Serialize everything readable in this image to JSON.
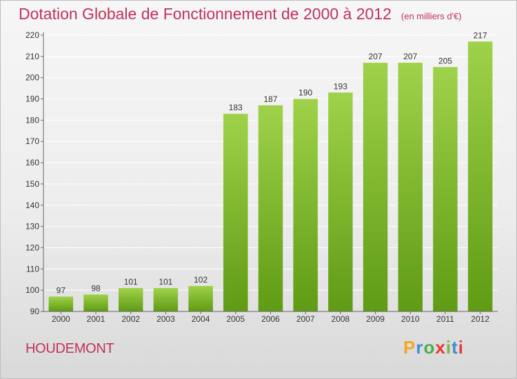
{
  "header": {
    "title": "Dotation Globale de Fonctionnement de 2000 à 2012",
    "subtitle": "(en milliers d'€)"
  },
  "footer": {
    "commune": "HOUDEMONT",
    "brand_letters": [
      "P",
      "r",
      "o",
      "x",
      "i",
      "t",
      "i"
    ],
    "brand_colors": [
      "#f5a623",
      "#3a8fd8",
      "#4caf50",
      "#e53935",
      "#7cb342",
      "#3a8fd8",
      "#e53935"
    ]
  },
  "colors": {
    "title": "#c0325a",
    "bar_light": "#9fd24a",
    "bar_dark": "#5f9b14",
    "grid": "#ffffff",
    "text": "#333333"
  },
  "chart_data": {
    "type": "bar",
    "title": "Dotation Globale de Fonctionnement de 2000 à 2012",
    "subtitle": "(en milliers d'€)",
    "xlabel": "",
    "ylabel": "",
    "categories": [
      "2000",
      "2001",
      "2002",
      "2003",
      "2004",
      "2005",
      "2006",
      "2007",
      "2008",
      "2009",
      "2010",
      "2011",
      "2012"
    ],
    "values": [
      97,
      98,
      101,
      101,
      102,
      183,
      187,
      190,
      193,
      207,
      207,
      205,
      217
    ],
    "ylim": [
      90,
      220
    ],
    "yticks": [
      90,
      100,
      110,
      120,
      130,
      140,
      150,
      160,
      170,
      180,
      190,
      200,
      210,
      220
    ],
    "grid": true,
    "legend": "none"
  }
}
